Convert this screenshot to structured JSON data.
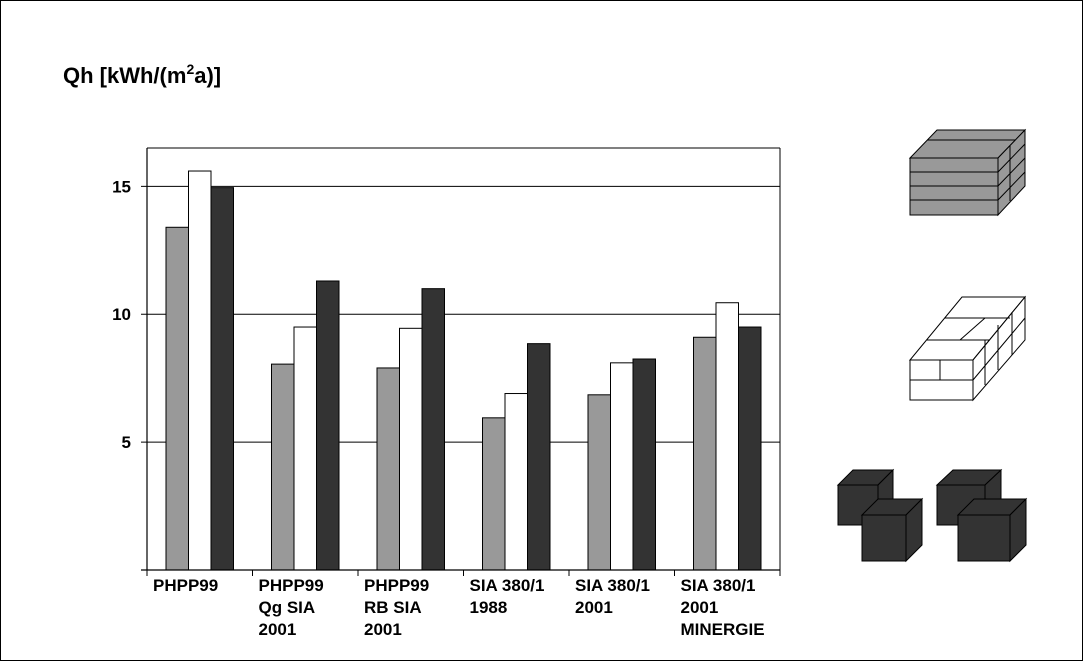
{
  "chart_data": {
    "type": "bar",
    "ylabel_main": "Qh [kWh/(m",
    "ylabel_sup": "2",
    "ylabel_tail": "a)]",
    "categories": [
      [
        "PHPP99"
      ],
      [
        "PHPP99",
        "Qg SIA",
        "2001"
      ],
      [
        "PHPP99",
        "RB SIA",
        "2001"
      ],
      [
        "SIA 380/1",
        "1988"
      ],
      [
        "SIA 380/1",
        "2001"
      ],
      [
        "SIA 380/1",
        "2001",
        "MINERGIE"
      ]
    ],
    "series": [
      {
        "color": "#999999",
        "values": [
          13.4,
          8.05,
          7.9,
          5.95,
          6.85,
          9.1
        ]
      },
      {
        "color": "#ffffff",
        "values": [
          15.6,
          9.5,
          9.45,
          6.9,
          8.1,
          10.45
        ]
      },
      {
        "color": "#333333",
        "values": [
          14.95,
          11.3,
          11.0,
          8.85,
          8.25,
          9.5
        ]
      }
    ],
    "ylim": [
      0,
      16.5
    ],
    "yticks": [
      5,
      10,
      15
    ],
    "grid": true,
    "legend": "right (building icons)"
  },
  "legend_icons": [
    {
      "name": "stacked-block-building-icon",
      "color": "#999999"
    },
    {
      "name": "row-house-building-icon",
      "color": "#ffffff"
    },
    {
      "name": "detached-houses-building-icon",
      "color": "#333333"
    }
  ]
}
